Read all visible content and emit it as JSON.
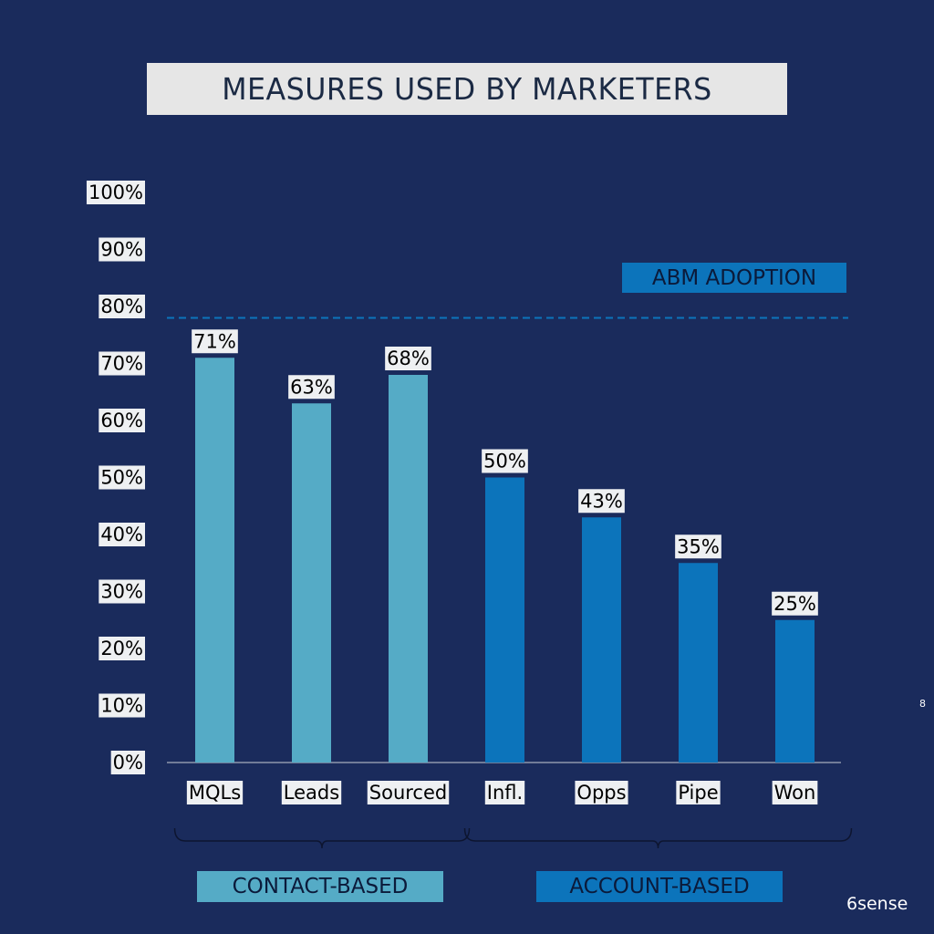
{
  "title": "MEASURES USED BY MARKETERS",
  "page_number": "8",
  "brand": "6sense",
  "reference_line": {
    "label": "ABM ADOPTION",
    "value": 78,
    "color": "#0c74bb"
  },
  "groups": [
    {
      "label": "CONTACT-BASED",
      "color": "#55abc6"
    },
    {
      "label": "ACCOUNT-BASED",
      "color": "#0c74bb"
    }
  ],
  "chart_data": {
    "type": "bar",
    "title": "MEASURES USED BY MARKETERS",
    "xlabel": "",
    "ylabel": "",
    "ylim": [
      0,
      100
    ],
    "y_ticks": [
      0,
      10,
      20,
      30,
      40,
      50,
      60,
      70,
      80,
      90,
      100
    ],
    "y_tick_labels": [
      "0%",
      "10%",
      "20%",
      "30%",
      "40%",
      "50%",
      "60%",
      "70%",
      "80%",
      "90%",
      "100%"
    ],
    "categories": [
      "MQLs",
      "Leads",
      "Sourced",
      "Infl.",
      "Opps",
      "Pipe",
      "Won"
    ],
    "values": [
      71,
      63,
      68,
      50,
      43,
      35,
      25
    ],
    "value_labels": [
      "71%",
      "63%",
      "68%",
      "50%",
      "43%",
      "35%",
      "25%"
    ],
    "bar_groups": [
      0,
      0,
      0,
      1,
      1,
      1,
      1
    ],
    "grid": false,
    "legend": "none"
  }
}
